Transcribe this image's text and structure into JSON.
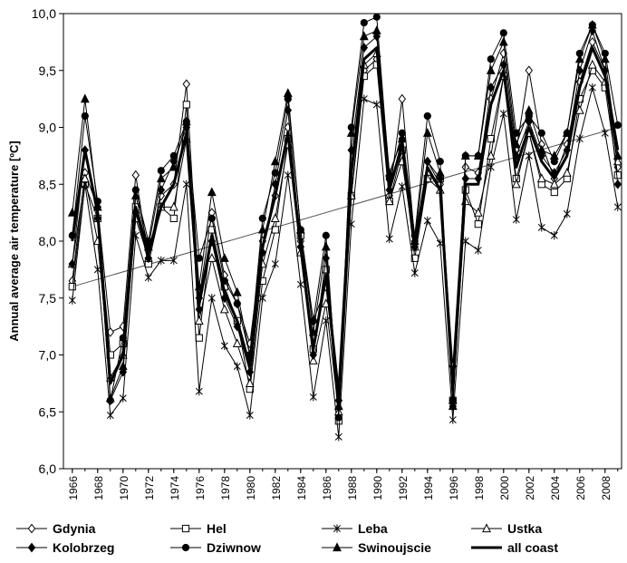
{
  "chart_data": {
    "type": "line",
    "y_label": "Annual average air temperature [ºC]",
    "x": [
      1966,
      1967,
      1968,
      1969,
      1970,
      1971,
      1972,
      1973,
      1974,
      1975,
      1976,
      1977,
      1978,
      1979,
      1980,
      1981,
      1982,
      1983,
      1984,
      1985,
      1986,
      1987,
      1988,
      1989,
      1990,
      1991,
      1992,
      1993,
      1994,
      1995,
      1996,
      1997,
      1998,
      1999,
      2000,
      2001,
      2002,
      2003,
      2004,
      2005,
      2006,
      2007,
      2008,
      2009
    ],
    "xlim": [
      1965.3,
      2009.3
    ],
    "xticks": [
      1966,
      1968,
      1970,
      1972,
      1974,
      1976,
      1978,
      1980,
      1982,
      1984,
      1986,
      1988,
      1990,
      1992,
      1994,
      1996,
      1998,
      2000,
      2002,
      2004,
      2006,
      2008
    ],
    "ylim": [
      6,
      10
    ],
    "yticks": [
      {
        "value": 6,
        "label": "6,0"
      },
      {
        "value": 6.5,
        "label": "6,5"
      },
      {
        "value": 7,
        "label": "7,0"
      },
      {
        "value": 7.5,
        "label": "7,5"
      },
      {
        "value": 8,
        "label": "8,0"
      },
      {
        "value": 8.5,
        "label": "8,5"
      },
      {
        "value": 9,
        "label": "9,0"
      },
      {
        "value": 9.5,
        "label": "9,5"
      },
      {
        "value": 10,
        "label": "10,0"
      }
    ],
    "legend": "bottom",
    "series": [
      {
        "name": "Gdynia",
        "color": "#000000",
        "marker": "diamond-open",
        "values": [
          7.65,
          8.6,
          8.3,
          7.2,
          7.25,
          8.58,
          7.85,
          8.4,
          8.5,
          9.38,
          7.5,
          8.25,
          7.7,
          7.45,
          7.1,
          8.0,
          8.4,
          9.0,
          8.0,
          7.3,
          7.6,
          6.6,
          8.4,
          9.5,
          9.6,
          8.4,
          9.25,
          8.0,
          8.7,
          8.5,
          6.9,
          8.65,
          8.6,
          9.25,
          9.65,
          8.8,
          9.5,
          8.85,
          8.55,
          8.85,
          9.4,
          9.75,
          9.5,
          8.65
        ]
      },
      {
        "name": "Hel",
        "color": "#000000",
        "marker": "square-open",
        "values": [
          7.6,
          8.5,
          8.2,
          7.0,
          7.1,
          8.3,
          7.8,
          8.3,
          8.2,
          9.2,
          7.15,
          8.1,
          7.6,
          7.3,
          6.7,
          7.65,
          8.1,
          8.9,
          8.05,
          7.05,
          7.75,
          6.42,
          8.4,
          9.45,
          9.55,
          8.35,
          8.8,
          7.85,
          8.55,
          8.55,
          6.6,
          8.45,
          8.15,
          8.9,
          9.45,
          8.55,
          8.95,
          8.5,
          8.43,
          8.55,
          9.25,
          9.5,
          9.35,
          8.58
        ]
      },
      {
        "name": "Leba",
        "color": "#000000",
        "marker": "star",
        "values": [
          7.48,
          8.5,
          7.75,
          6.47,
          6.62,
          8.05,
          7.68,
          7.83,
          7.83,
          8.5,
          6.68,
          7.5,
          7.08,
          6.9,
          6.47,
          7.5,
          7.8,
          8.58,
          7.62,
          6.63,
          7.3,
          6.28,
          8.15,
          9.25,
          9.2,
          8.02,
          8.48,
          7.72,
          8.18,
          7.98,
          6.43,
          8.0,
          7.92,
          8.65,
          9.12,
          8.19,
          8.75,
          8.12,
          8.05,
          8.24,
          8.9,
          9.35,
          8.95,
          8.3
        ]
      },
      {
        "name": "Ustka",
        "color": "#000000",
        "marker": "triangle-open",
        "values": [
          7.8,
          8.55,
          8.0,
          6.8,
          7.0,
          8.2,
          7.85,
          8.3,
          8.3,
          8.9,
          7.3,
          7.85,
          7.4,
          7.1,
          6.75,
          7.8,
          8.2,
          8.85,
          7.9,
          6.95,
          7.45,
          6.5,
          8.4,
          9.55,
          9.65,
          8.35,
          8.7,
          7.95,
          8.55,
          8.45,
          6.6,
          8.35,
          8.25,
          8.75,
          9.45,
          8.5,
          8.95,
          8.55,
          8.5,
          8.6,
          9.15,
          9.55,
          9.4,
          8.7
        ]
      },
      {
        "name": "Kolobrzeg",
        "color": "#000000",
        "marker": "diamond",
        "values": [
          7.8,
          8.8,
          8.2,
          6.6,
          6.85,
          8.25,
          7.85,
          8.45,
          8.7,
          9.0,
          7.4,
          8.0,
          7.5,
          7.25,
          6.85,
          7.9,
          8.5,
          9.15,
          7.95,
          7.0,
          7.85,
          6.6,
          8.8,
          9.7,
          9.8,
          8.45,
          8.9,
          7.95,
          8.7,
          8.55,
          6.55,
          8.55,
          8.55,
          9.35,
          9.55,
          8.75,
          9.05,
          8.75,
          8.6,
          8.8,
          9.5,
          9.85,
          9.5,
          8.5
        ]
      },
      {
        "name": "Dziwnow",
        "color": "#000000",
        "marker": "circle",
        "values": [
          8.05,
          9.1,
          8.35,
          6.6,
          7.15,
          8.45,
          8.0,
          8.62,
          8.75,
          9.05,
          7.85,
          8.2,
          7.65,
          7.45,
          7.0,
          8.2,
          8.6,
          9.25,
          8.1,
          7.3,
          8.05,
          6.45,
          9.0,
          9.92,
          9.97,
          8.55,
          8.95,
          8.05,
          9.1,
          8.7,
          6.6,
          8.75,
          8.75,
          9.6,
          9.83,
          8.95,
          9.1,
          8.95,
          8.7,
          8.95,
          9.65,
          9.9,
          9.65,
          9.02
        ]
      },
      {
        "name": "Swinoujscie",
        "color": "#000000",
        "marker": "triangle",
        "values": [
          8.25,
          9.25,
          8.3,
          6.62,
          6.9,
          8.4,
          7.95,
          8.55,
          8.65,
          9.05,
          7.6,
          8.43,
          7.85,
          7.55,
          7.0,
          8.1,
          8.7,
          9.3,
          8.1,
          7.2,
          7.95,
          6.55,
          8.95,
          9.8,
          9.85,
          8.6,
          8.9,
          8.0,
          8.95,
          8.6,
          6.55,
          8.75,
          8.75,
          9.5,
          9.75,
          8.85,
          9.15,
          8.8,
          8.75,
          8.95,
          9.6,
          9.9,
          9.6,
          8.75
        ]
      },
      {
        "name": "all coast",
        "color": "#000000",
        "marker": "none",
        "values": [
          8.0,
          8.8,
          8.25,
          6.75,
          7.0,
          8.3,
          7.9,
          8.3,
          8.5,
          8.95,
          7.45,
          8.05,
          7.55,
          7.3,
          6.9,
          7.95,
          8.4,
          8.95,
          7.95,
          7.05,
          7.7,
          6.65,
          8.6,
          9.6,
          9.7,
          8.45,
          8.85,
          7.95,
          8.65,
          8.45,
          6.7,
          8.5,
          8.5,
          9.2,
          9.5,
          8.65,
          9.0,
          8.7,
          8.55,
          8.75,
          9.35,
          9.7,
          9.45,
          8.8
        ]
      }
    ],
    "trend": {
      "x": [
        1966,
        2009
      ],
      "values": [
        7.6,
        9.0
      ],
      "color": "#555555"
    }
  }
}
